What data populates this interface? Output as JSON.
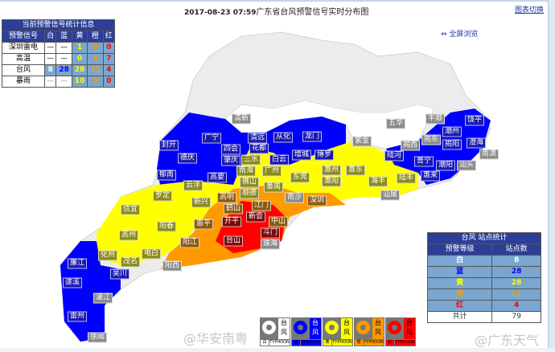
{
  "header": {
    "datetime": "2017-08-23  07:59",
    "title": "广东省台风预警信号实时分布图",
    "switch_link": "图表切换",
    "fullscreen_link": "全屏浏览"
  },
  "colors": {
    "white": "#ffffff",
    "blue": "#0000ff",
    "yellow": "#ffff00",
    "orange": "#ff9900",
    "red": "#ff0000",
    "none": "#ececec"
  },
  "summary_table": {
    "title": "当前预警信号统计信息",
    "headers": [
      "预警信号",
      "白",
      "蓝",
      "黄",
      "橙",
      "红"
    ],
    "rows": [
      {
        "name": "深圳雷电",
        "white": "—",
        "blue": "—",
        "yellow": "1",
        "orange": "0",
        "red": "0"
      },
      {
        "name": "高温",
        "white": "—",
        "blue": "—",
        "yellow": "0",
        "orange": "4",
        "red": "7"
      },
      {
        "name": "台风",
        "white": "8",
        "blue": "28",
        "yellow": "28",
        "orange": "11",
        "red": "4"
      },
      {
        "name": "暴雨",
        "white": "—",
        "blue": "—",
        "yellow": "10",
        "orange": "0",
        "red": "0"
      }
    ]
  },
  "station_table": {
    "title": "台风 站点统计",
    "headers": [
      "预警等级",
      "站点数"
    ],
    "rows": [
      {
        "level": "白",
        "count": "8"
      },
      {
        "level": "蓝",
        "count": "28"
      },
      {
        "level": "黄",
        "count": "28"
      },
      {
        "level": "橙",
        "count": "11"
      },
      {
        "level": "红",
        "count": "4"
      }
    ],
    "total_label": "共计",
    "total": "79"
  },
  "legend": [
    {
      "level": "白",
      "zh": "台风",
      "en": "TYPHOON",
      "color": "#ffffff"
    },
    {
      "level": "蓝",
      "zh": "台风",
      "en": "TYPHOON",
      "color": "#0000ff"
    },
    {
      "level": "黄",
      "zh": "台风",
      "en": "TYPHOON",
      "color": "#ffff00"
    },
    {
      "level": "橙",
      "zh": "台风",
      "en": "TYPHOON",
      "color": "#ff9900"
    },
    {
      "level": "红",
      "zh": "台风",
      "en": "TYPHOON",
      "color": "#ff0000"
    }
  ],
  "watermarks": [
    "@华安南粤",
    "@广东天气"
  ],
  "stations": [
    {
      "name": "封开",
      "level": "blue"
    },
    {
      "name": "德庆",
      "level": "blue"
    },
    {
      "name": "郁南",
      "level": "blue"
    },
    {
      "name": "广宁",
      "level": "blue"
    },
    {
      "name": "四会",
      "level": "blue"
    },
    {
      "name": "肇庆",
      "level": "blue"
    },
    {
      "name": "高要",
      "level": "blue"
    },
    {
      "name": "清新",
      "level": "none"
    },
    {
      "name": "清远",
      "level": "blue"
    },
    {
      "name": "从化",
      "level": "blue"
    },
    {
      "name": "龙门",
      "level": "blue"
    },
    {
      "name": "花都",
      "level": "blue"
    },
    {
      "name": "三水",
      "level": "yellow"
    },
    {
      "name": "白云",
      "level": "blue"
    },
    {
      "name": "增城",
      "level": "blue"
    },
    {
      "name": "博罗",
      "level": "blue"
    },
    {
      "name": "南海",
      "level": "yellow"
    },
    {
      "name": "广州",
      "level": "yellow"
    },
    {
      "name": "佛山",
      "level": "yellow"
    },
    {
      "name": "顺德",
      "level": "yellow"
    },
    {
      "name": "番禺",
      "level": "yellow"
    },
    {
      "name": "东莞",
      "level": "yellow"
    },
    {
      "name": "惠州",
      "level": "yellow"
    },
    {
      "name": "惠阳",
      "level": "yellow"
    },
    {
      "name": "惠东",
      "level": "yellow"
    },
    {
      "name": "云浮",
      "level": "yellow"
    },
    {
      "name": "高明",
      "level": "orange"
    },
    {
      "name": "鹤山",
      "level": "orange"
    },
    {
      "name": "江门",
      "level": "orange"
    },
    {
      "name": "新会",
      "level": "red"
    },
    {
      "name": "开平",
      "level": "red"
    },
    {
      "name": "中山",
      "level": "orange"
    },
    {
      "name": "斗门",
      "level": "red"
    },
    {
      "name": "珠海",
      "level": "none"
    },
    {
      "name": "台山",
      "level": "red"
    },
    {
      "name": "南沙",
      "level": "none"
    },
    {
      "name": "深圳",
      "level": "orange"
    },
    {
      "name": "罗定",
      "level": "yellow"
    },
    {
      "name": "新兴",
      "level": "yellow"
    },
    {
      "name": "信宜",
      "level": "yellow"
    },
    {
      "name": "恩平",
      "level": "orange"
    },
    {
      "name": "阳春",
      "level": "yellow"
    },
    {
      "name": "高州",
      "level": "yellow"
    },
    {
      "name": "阳江",
      "level": "orange"
    },
    {
      "name": "化州",
      "level": "yellow"
    },
    {
      "name": "电白",
      "level": "yellow"
    },
    {
      "name": "茂名",
      "level": "yellow"
    },
    {
      "name": "阳西",
      "level": "none"
    },
    {
      "name": "廉江",
      "level": "blue"
    },
    {
      "name": "吴川",
      "level": "blue"
    },
    {
      "name": "遂溪",
      "level": "blue"
    },
    {
      "name": "湛江",
      "level": "none"
    },
    {
      "name": "雷州",
      "level": "blue"
    },
    {
      "name": "徐闻",
      "level": "none"
    },
    {
      "name": "紫金",
      "level": "none"
    },
    {
      "name": "五华",
      "level": "none"
    },
    {
      "name": "丰顺",
      "level": "none"
    },
    {
      "name": "饶平",
      "level": "blue"
    },
    {
      "name": "潮州",
      "level": "blue"
    },
    {
      "name": "揭西",
      "level": "none"
    },
    {
      "name": "揭东",
      "level": "none"
    },
    {
      "name": "揭阳",
      "level": "blue"
    },
    {
      "name": "澄海",
      "level": "blue"
    },
    {
      "name": "南澳",
      "level": "none"
    },
    {
      "name": "汕头",
      "level": "none"
    },
    {
      "name": "陆河",
      "level": "blue"
    },
    {
      "name": "普宁",
      "level": "blue"
    },
    {
      "name": "潮阳",
      "level": "blue"
    },
    {
      "name": "惠来",
      "level": "blue"
    },
    {
      "name": "海丰",
      "level": "yellow"
    },
    {
      "name": "陆丰",
      "level": "yellow"
    },
    {
      "name": "汕尾",
      "level": "none"
    }
  ]
}
